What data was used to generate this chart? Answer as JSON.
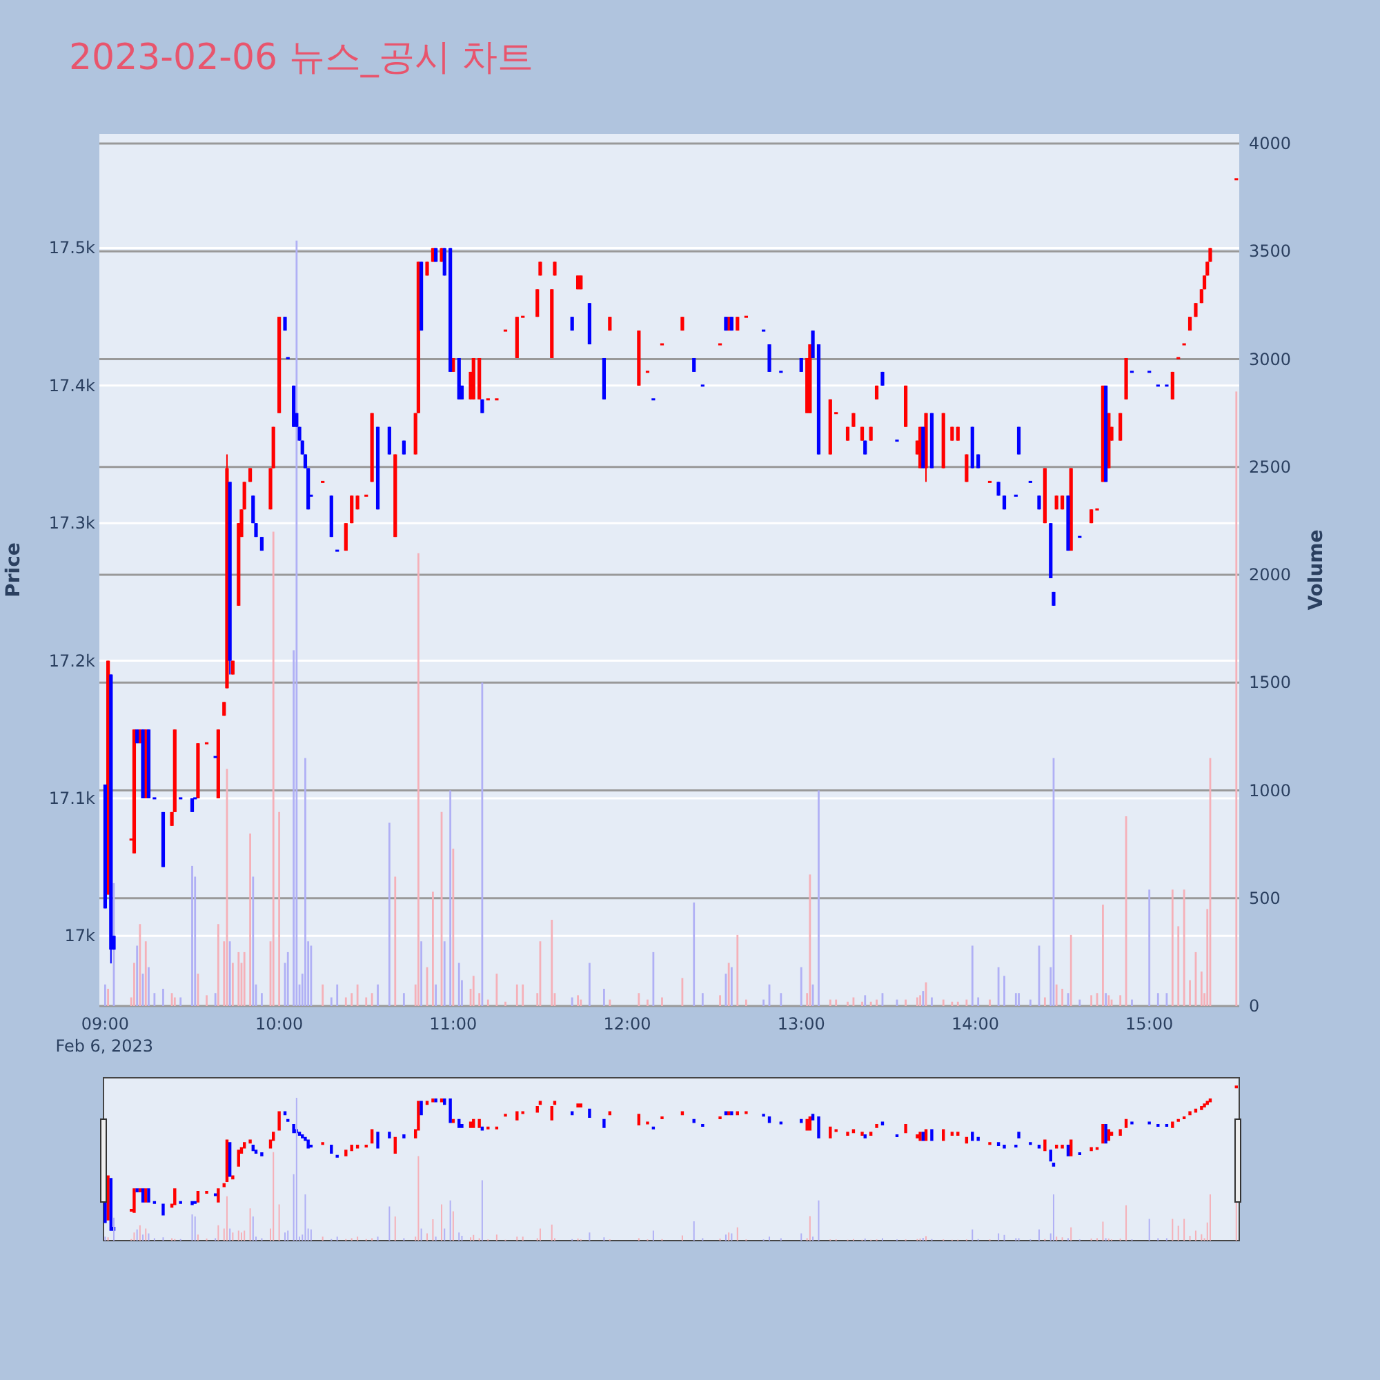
{
  "chart_data": {
    "type": "candlestick",
    "title": "2023-02-06 뉴스_공시 차트",
    "ylabel": "Price",
    "y2label": "Volume",
    "xlim": [
      "2023-02-06T08:58",
      "2023-02-06T15:31"
    ],
    "xticks": [
      {
        "value": "2023-02-06T09:00",
        "label": "09:00\nFeb 6, 2023"
      },
      {
        "value": "2023-02-06T10:00",
        "label": "10:00"
      },
      {
        "value": "2023-02-06T11:00",
        "label": "11:00"
      },
      {
        "value": "2023-02-06T12:00",
        "label": "12:00"
      },
      {
        "value": "2023-02-06T13:00",
        "label": "13:00"
      },
      {
        "value": "2023-02-06T14:00",
        "label": "14:00"
      },
      {
        "value": "2023-02-06T15:00",
        "label": "15:00"
      }
    ],
    "ylim": [
      16949,
      17583
    ],
    "yticks": [
      {
        "value": 17000,
        "label": "17k"
      },
      {
        "value": 17100,
        "label": "17.1k"
      },
      {
        "value": 17200,
        "label": "17.2k"
      },
      {
        "value": 17300,
        "label": "17.3k"
      },
      {
        "value": 17400,
        "label": "17.4k"
      },
      {
        "value": 17500,
        "label": "17.5k"
      }
    ],
    "y2lim": [
      0,
      4045
    ],
    "y2ticks": [
      0,
      500,
      1000,
      1500,
      2000,
      2500,
      3000,
      3500,
      4000
    ],
    "grid": true,
    "series": [
      {
        "type": "candlestick",
        "color": "#ff0000",
        "x": [
          "2023-02-06T09:01",
          "2023-02-06T09:09",
          "2023-02-06T09:10",
          "2023-02-06T09:12",
          "2023-02-06T09:14",
          "2023-02-06T09:23",
          "2023-02-06T09:24",
          "2023-02-06T09:32",
          "2023-02-06T09:35",
          "2023-02-06T09:39",
          "2023-02-06T09:41",
          "2023-02-06T09:42",
          "2023-02-06T09:44",
          "2023-02-06T09:46",
          "2023-02-06T09:47",
          "2023-02-06T09:48",
          "2023-02-06T09:50",
          "2023-02-06T09:57",
          "2023-02-06T09:58",
          "2023-02-06T10:00",
          "2023-02-06T10:15",
          "2023-02-06T10:23",
          "2023-02-06T10:25",
          "2023-02-06T10:27",
          "2023-02-06T10:30",
          "2023-02-06T10:32",
          "2023-02-06T10:40",
          "2023-02-06T10:47",
          "2023-02-06T10:48",
          "2023-02-06T10:51",
          "2023-02-06T10:53",
          "2023-02-06T10:56",
          "2023-02-06T11:00",
          "2023-02-06T11:06",
          "2023-02-06T11:07",
          "2023-02-06T11:09",
          "2023-02-06T11:12",
          "2023-02-06T11:15",
          "2023-02-06T11:18",
          "2023-02-06T11:22",
          "2023-02-06T11:24",
          "2023-02-06T11:29",
          "2023-02-06T11:30",
          "2023-02-06T11:34",
          "2023-02-06T11:35",
          "2023-02-06T11:43",
          "2023-02-06T11:44",
          "2023-02-06T11:54",
          "2023-02-06T12:04",
          "2023-02-06T12:07",
          "2023-02-06T12:12",
          "2023-02-06T12:19",
          "2023-02-06T12:32",
          "2023-02-06T12:35",
          "2023-02-06T12:38",
          "2023-02-06T12:41",
          "2023-02-06T13:02",
          "2023-02-06T13:03",
          "2023-02-06T13:10",
          "2023-02-06T13:12",
          "2023-02-06T13:16",
          "2023-02-06T13:18",
          "2023-02-06T13:21",
          "2023-02-06T13:24",
          "2023-02-06T13:26",
          "2023-02-06T13:36",
          "2023-02-06T13:40",
          "2023-02-06T13:41",
          "2023-02-06T13:43",
          "2023-02-06T13:49",
          "2023-02-06T13:52",
          "2023-02-06T13:54",
          "2023-02-06T13:57",
          "2023-02-06T14:05",
          "2023-02-06T14:24",
          "2023-02-06T14:28",
          "2023-02-06T14:30",
          "2023-02-06T14:33",
          "2023-02-06T14:40",
          "2023-02-06T14:42",
          "2023-02-06T14:44",
          "2023-02-06T14:46",
          "2023-02-06T14:47",
          "2023-02-06T14:50",
          "2023-02-06T14:52",
          "2023-02-06T15:08",
          "2023-02-06T15:10",
          "2023-02-06T15:12",
          "2023-02-06T15:14",
          "2023-02-06T15:16",
          "2023-02-06T15:18",
          "2023-02-06T15:19",
          "2023-02-06T15:20",
          "2023-02-06T15:21",
          "2023-02-06T15:30"
        ],
        "ohlc": [
          [
            17030,
            17200,
            17030,
            17200
          ],
          [
            17070,
            17070,
            17070,
            17070
          ],
          [
            17060,
            17150,
            17060,
            17150
          ],
          [
            17140,
            17150,
            17140,
            17150
          ],
          [
            17100,
            17150,
            17100,
            17150
          ],
          [
            17080,
            17090,
            17080,
            17090
          ],
          [
            17090,
            17150,
            17090,
            17150
          ],
          [
            17100,
            17140,
            17100,
            17140
          ],
          [
            17140,
            17140,
            17140,
            17140
          ],
          [
            17100,
            17150,
            17100,
            17150
          ],
          [
            17160,
            17170,
            17160,
            17170
          ],
          [
            17180,
            17350,
            17180,
            17340
          ],
          [
            17190,
            17200,
            17190,
            17200
          ],
          [
            17240,
            17300,
            17240,
            17300
          ],
          [
            17290,
            17310,
            17290,
            17310
          ],
          [
            17310,
            17330,
            17310,
            17330
          ],
          [
            17330,
            17340,
            17330,
            17340
          ],
          [
            17310,
            17340,
            17310,
            17340
          ],
          [
            17340,
            17370,
            17340,
            17370
          ],
          [
            17380,
            17450,
            17380,
            17450
          ],
          [
            17330,
            17330,
            17330,
            17330
          ],
          [
            17280,
            17300,
            17280,
            17300
          ],
          [
            17300,
            17320,
            17300,
            17320
          ],
          [
            17310,
            17320,
            17310,
            17320
          ],
          [
            17320,
            17320,
            17320,
            17320
          ],
          [
            17330,
            17380,
            17330,
            17380
          ],
          [
            17290,
            17350,
            17290,
            17350
          ],
          [
            17350,
            17380,
            17350,
            17380
          ],
          [
            17380,
            17490,
            17380,
            17490
          ],
          [
            17480,
            17490,
            17480,
            17490
          ],
          [
            17490,
            17500,
            17490,
            17500
          ],
          [
            17490,
            17500,
            17490,
            17500
          ],
          [
            17410,
            17420,
            17410,
            17420
          ],
          [
            17390,
            17410,
            17390,
            17410
          ],
          [
            17390,
            17420,
            17390,
            17420
          ],
          [
            17390,
            17420,
            17390,
            17420
          ],
          [
            17390,
            17390,
            17390,
            17390
          ],
          [
            17390,
            17390,
            17390,
            17390
          ],
          [
            17440,
            17440,
            17440,
            17440
          ],
          [
            17420,
            17450,
            17420,
            17450
          ],
          [
            17450,
            17450,
            17450,
            17450
          ],
          [
            17450,
            17470,
            17450,
            17470
          ],
          [
            17480,
            17490,
            17480,
            17490
          ],
          [
            17420,
            17470,
            17420,
            17470
          ],
          [
            17480,
            17490,
            17480,
            17490
          ],
          [
            17470,
            17480,
            17470,
            17480
          ],
          [
            17470,
            17480,
            17470,
            17480
          ],
          [
            17440,
            17450,
            17440,
            17450
          ],
          [
            17400,
            17440,
            17400,
            17440
          ],
          [
            17410,
            17410,
            17410,
            17410
          ],
          [
            17430,
            17430,
            17430,
            17430
          ],
          [
            17440,
            17450,
            17440,
            17450
          ],
          [
            17430,
            17430,
            17430,
            17430
          ],
          [
            17440,
            17450,
            17440,
            17450
          ],
          [
            17440,
            17450,
            17440,
            17450
          ],
          [
            17450,
            17450,
            17450,
            17450
          ],
          [
            17380,
            17420,
            17380,
            17420
          ],
          [
            17380,
            17430,
            17380,
            17430
          ],
          [
            17350,
            17390,
            17350,
            17390
          ],
          [
            17380,
            17380,
            17380,
            17380
          ],
          [
            17360,
            17370,
            17360,
            17370
          ],
          [
            17370,
            17380,
            17370,
            17380
          ],
          [
            17360,
            17370,
            17360,
            17370
          ],
          [
            17360,
            17370,
            17360,
            17370
          ],
          [
            17390,
            17400,
            17390,
            17400
          ],
          [
            17370,
            17400,
            17370,
            17400
          ],
          [
            17350,
            17360,
            17350,
            17360
          ],
          [
            17340,
            17370,
            17340,
            17370
          ],
          [
            17340,
            17380,
            17330,
            17380
          ],
          [
            17340,
            17380,
            17340,
            17380
          ],
          [
            17360,
            17370,
            17360,
            17370
          ],
          [
            17360,
            17370,
            17360,
            17370
          ],
          [
            17330,
            17350,
            17330,
            17350
          ],
          [
            17330,
            17330,
            17330,
            17330
          ],
          [
            17300,
            17340,
            17300,
            17340
          ],
          [
            17310,
            17320,
            17310,
            17320
          ],
          [
            17310,
            17320,
            17310,
            17320
          ],
          [
            17280,
            17340,
            17280,
            17340
          ],
          [
            17300,
            17310,
            17300,
            17310
          ],
          [
            17310,
            17310,
            17310,
            17310
          ],
          [
            17330,
            17400,
            17330,
            17400
          ],
          [
            17340,
            17380,
            17340,
            17380
          ],
          [
            17360,
            17370,
            17360,
            17370
          ],
          [
            17360,
            17380,
            17360,
            17380
          ],
          [
            17390,
            17420,
            17390,
            17420
          ],
          [
            17390,
            17410,
            17390,
            17410
          ],
          [
            17420,
            17420,
            17420,
            17420
          ],
          [
            17430,
            17430,
            17430,
            17430
          ],
          [
            17440,
            17450,
            17440,
            17450
          ],
          [
            17450,
            17460,
            17450,
            17460
          ],
          [
            17460,
            17470,
            17460,
            17470
          ],
          [
            17470,
            17480,
            17470,
            17480
          ],
          [
            17480,
            17490,
            17480,
            17490
          ],
          [
            17490,
            17500,
            17490,
            17500
          ],
          [
            17550,
            17550,
            17550,
            17550
          ]
        ]
      },
      {
        "type": "candlestick",
        "color": "#0000ff",
        "x": [
          "2023-02-06T09:00",
          "2023-02-06T09:02",
          "2023-02-06T09:03",
          "2023-02-06T09:11",
          "2023-02-06T09:13",
          "2023-02-06T09:15",
          "2023-02-06T09:17",
          "2023-02-06T09:20",
          "2023-02-06T09:26",
          "2023-02-06T09:30",
          "2023-02-06T09:31",
          "2023-02-06T09:38",
          "2023-02-06T09:43",
          "2023-02-06T09:51",
          "2023-02-06T09:52",
          "2023-02-06T09:54",
          "2023-02-06T10:02",
          "2023-02-06T10:03",
          "2023-02-06T10:05",
          "2023-02-06T10:06",
          "2023-02-06T10:07",
          "2023-02-06T10:08",
          "2023-02-06T10:09",
          "2023-02-06T10:10",
          "2023-02-06T10:11",
          "2023-02-06T10:18",
          "2023-02-06T10:20",
          "2023-02-06T10:34",
          "2023-02-06T10:38",
          "2023-02-06T10:43",
          "2023-02-06T10:49",
          "2023-02-06T10:54",
          "2023-02-06T10:57",
          "2023-02-06T10:59",
          "2023-02-06T11:02",
          "2023-02-06T11:03",
          "2023-02-06T11:10",
          "2023-02-06T11:41",
          "2023-02-06T11:47",
          "2023-02-06T11:52",
          "2023-02-06T12:09",
          "2023-02-06T12:23",
          "2023-02-06T12:26",
          "2023-02-06T12:34",
          "2023-02-06T12:36",
          "2023-02-06T12:47",
          "2023-02-06T12:49",
          "2023-02-06T12:53",
          "2023-02-06T13:00",
          "2023-02-06T13:04",
          "2023-02-06T13:06",
          "2023-02-06T13:22",
          "2023-02-06T13:28",
          "2023-02-06T13:33",
          "2023-02-06T13:42",
          "2023-02-06T13:45",
          "2023-02-06T13:59",
          "2023-02-06T14:01",
          "2023-02-06T14:08",
          "2023-02-06T14:10",
          "2023-02-06T14:14",
          "2023-02-06T14:15",
          "2023-02-06T14:19",
          "2023-02-06T14:22",
          "2023-02-06T14:26",
          "2023-02-06T14:27",
          "2023-02-06T14:32",
          "2023-02-06T14:36",
          "2023-02-06T14:45",
          "2023-02-06T14:54",
          "2023-02-06T15:00",
          "2023-02-06T15:03",
          "2023-02-06T15:06"
        ],
        "ohlc": [
          [
            17110,
            17110,
            17020,
            17020
          ],
          [
            17190,
            17190,
            16980,
            16990
          ],
          [
            17000,
            17000,
            16990,
            16990
          ],
          [
            17150,
            17150,
            17140,
            17140
          ],
          [
            17150,
            17150,
            17100,
            17100
          ],
          [
            17150,
            17150,
            17100,
            17100
          ],
          [
            17100,
            17100,
            17100,
            17100
          ],
          [
            17090,
            17090,
            17050,
            17050
          ],
          [
            17100,
            17100,
            17100,
            17100
          ],
          [
            17100,
            17100,
            17090,
            17090
          ],
          [
            17100,
            17100,
            17100,
            17100
          ],
          [
            17130,
            17130,
            17130,
            17130
          ],
          [
            17330,
            17330,
            17190,
            17200
          ],
          [
            17320,
            17320,
            17300,
            17300
          ],
          [
            17300,
            17300,
            17290,
            17290
          ],
          [
            17290,
            17290,
            17280,
            17280
          ],
          [
            17450,
            17450,
            17440,
            17440
          ],
          [
            17420,
            17420,
            17420,
            17420
          ],
          [
            17400,
            17400,
            17370,
            17370
          ],
          [
            17380,
            17380,
            17370,
            17370
          ],
          [
            17370,
            17370,
            17360,
            17360
          ],
          [
            17360,
            17360,
            17350,
            17350
          ],
          [
            17350,
            17350,
            17340,
            17340
          ],
          [
            17340,
            17340,
            17310,
            17310
          ],
          [
            17320,
            17320,
            17320,
            17320
          ],
          [
            17320,
            17320,
            17290,
            17290
          ],
          [
            17280,
            17280,
            17280,
            17280
          ],
          [
            17370,
            17370,
            17310,
            17310
          ],
          [
            17370,
            17370,
            17350,
            17350
          ],
          [
            17360,
            17360,
            17350,
            17350
          ],
          [
            17490,
            17490,
            17440,
            17440
          ],
          [
            17500,
            17500,
            17490,
            17490
          ],
          [
            17500,
            17500,
            17480,
            17480
          ],
          [
            17500,
            17500,
            17410,
            17410
          ],
          [
            17420,
            17420,
            17390,
            17390
          ],
          [
            17400,
            17400,
            17390,
            17390
          ],
          [
            17390,
            17390,
            17380,
            17380
          ],
          [
            17450,
            17450,
            17440,
            17440
          ],
          [
            17460,
            17460,
            17430,
            17430
          ],
          [
            17420,
            17420,
            17390,
            17390
          ],
          [
            17390,
            17390,
            17390,
            17390
          ],
          [
            17420,
            17420,
            17410,
            17410
          ],
          [
            17400,
            17400,
            17400,
            17400
          ],
          [
            17450,
            17450,
            17440,
            17440
          ],
          [
            17450,
            17450,
            17440,
            17440
          ],
          [
            17440,
            17440,
            17440,
            17440
          ],
          [
            17430,
            17430,
            17410,
            17410
          ],
          [
            17410,
            17410,
            17410,
            17410
          ],
          [
            17420,
            17420,
            17410,
            17410
          ],
          [
            17440,
            17440,
            17420,
            17420
          ],
          [
            17430,
            17430,
            17350,
            17350
          ],
          [
            17360,
            17360,
            17350,
            17350
          ],
          [
            17410,
            17410,
            17400,
            17400
          ],
          [
            17360,
            17360,
            17360,
            17360
          ],
          [
            17370,
            17370,
            17340,
            17340
          ],
          [
            17380,
            17380,
            17340,
            17340
          ],
          [
            17370,
            17370,
            17340,
            17340
          ],
          [
            17350,
            17350,
            17340,
            17340
          ],
          [
            17330,
            17330,
            17320,
            17320
          ],
          [
            17320,
            17320,
            17310,
            17310
          ],
          [
            17320,
            17320,
            17320,
            17320
          ],
          [
            17370,
            17370,
            17350,
            17350
          ],
          [
            17330,
            17330,
            17330,
            17330
          ],
          [
            17320,
            17320,
            17310,
            17310
          ],
          [
            17300,
            17300,
            17260,
            17260
          ],
          [
            17250,
            17250,
            17240,
            17240
          ],
          [
            17320,
            17320,
            17280,
            17280
          ],
          [
            17290,
            17290,
            17290,
            17290
          ],
          [
            17400,
            17400,
            17330,
            17330
          ],
          [
            17410,
            17410,
            17410,
            17410
          ],
          [
            17410,
            17410,
            17410,
            17410
          ],
          [
            17400,
            17400,
            17400,
            17400
          ],
          [
            17400,
            17400,
            17400,
            17400
          ]
        ]
      },
      {
        "type": "bar",
        "axis": "y2",
        "color": "#f5b0b8",
        "x": [
          "2023-02-06T09:01",
          "2023-02-06T09:09",
          "2023-02-06T09:10",
          "2023-02-06T09:12",
          "2023-02-06T09:14",
          "2023-02-06T09:23",
          "2023-02-06T09:24",
          "2023-02-06T09:32",
          "2023-02-06T09:35",
          "2023-02-06T09:39",
          "2023-02-06T09:41",
          "2023-02-06T09:42",
          "2023-02-06T09:44",
          "2023-02-06T09:46",
          "2023-02-06T09:47",
          "2023-02-06T09:48",
          "2023-02-06T09:50",
          "2023-02-06T09:57",
          "2023-02-06T09:58",
          "2023-02-06T10:00",
          "2023-02-06T10:15",
          "2023-02-06T10:23",
          "2023-02-06T10:25",
          "2023-02-06T10:27",
          "2023-02-06T10:30",
          "2023-02-06T10:32",
          "2023-02-06T10:40",
          "2023-02-06T10:47",
          "2023-02-06T10:48",
          "2023-02-06T10:51",
          "2023-02-06T10:53",
          "2023-02-06T10:56",
          "2023-02-06T11:00",
          "2023-02-06T11:06",
          "2023-02-06T11:07",
          "2023-02-06T11:09",
          "2023-02-06T11:12",
          "2023-02-06T11:15",
          "2023-02-06T11:18",
          "2023-02-06T11:22",
          "2023-02-06T11:24",
          "2023-02-06T11:29",
          "2023-02-06T11:30",
          "2023-02-06T11:34",
          "2023-02-06T11:35",
          "2023-02-06T11:43",
          "2023-02-06T11:44",
          "2023-02-06T11:54",
          "2023-02-06T12:04",
          "2023-02-06T12:07",
          "2023-02-06T12:12",
          "2023-02-06T12:19",
          "2023-02-06T12:32",
          "2023-02-06T12:35",
          "2023-02-06T12:38",
          "2023-02-06T12:41",
          "2023-02-06T13:02",
          "2023-02-06T13:03",
          "2023-02-06T13:10",
          "2023-02-06T13:12",
          "2023-02-06T13:16",
          "2023-02-06T13:18",
          "2023-02-06T13:21",
          "2023-02-06T13:24",
          "2023-02-06T13:26",
          "2023-02-06T13:36",
          "2023-02-06T13:40",
          "2023-02-06T13:41",
          "2023-02-06T13:43",
          "2023-02-06T13:49",
          "2023-02-06T13:52",
          "2023-02-06T13:54",
          "2023-02-06T13:57",
          "2023-02-06T14:05",
          "2023-02-06T14:24",
          "2023-02-06T14:28",
          "2023-02-06T14:30",
          "2023-02-06T14:33",
          "2023-02-06T14:40",
          "2023-02-06T14:42",
          "2023-02-06T14:44",
          "2023-02-06T14:46",
          "2023-02-06T14:47",
          "2023-02-06T14:50",
          "2023-02-06T14:52",
          "2023-02-06T15:08",
          "2023-02-06T15:10",
          "2023-02-06T15:12",
          "2023-02-06T15:14",
          "2023-02-06T15:16",
          "2023-02-06T15:18",
          "2023-02-06T15:19",
          "2023-02-06T15:20",
          "2023-02-06T15:21",
          "2023-02-06T15:30"
        ],
        "values": [
          80,
          40,
          200,
          380,
          300,
          60,
          40,
          150,
          50,
          380,
          300,
          1100,
          200,
          250,
          200,
          250,
          800,
          300,
          2200,
          900,
          100,
          40,
          60,
          100,
          40,
          60,
          600,
          100,
          2100,
          180,
          530,
          900,
          730,
          80,
          140,
          60,
          30,
          150,
          20,
          100,
          100,
          60,
          300,
          400,
          60,
          50,
          30,
          30,
          60,
          30,
          40,
          130,
          50,
          200,
          330,
          30,
          60,
          610,
          30,
          30,
          20,
          40,
          20,
          20,
          30,
          30,
          40,
          50,
          110,
          30,
          20,
          20,
          30,
          30,
          40,
          100,
          80,
          330,
          50,
          60,
          470,
          50,
          30,
          50,
          880,
          540,
          370,
          540,
          120,
          250,
          160,
          60,
          450,
          1150,
          2850
        ]
      },
      {
        "type": "bar",
        "axis": "y2",
        "color": "#b0b0f5",
        "x": [
          "2023-02-06T09:00",
          "2023-02-06T09:03",
          "2023-02-06T09:11",
          "2023-02-06T09:13",
          "2023-02-06T09:15",
          "2023-02-06T09:17",
          "2023-02-06T09:20",
          "2023-02-06T09:26",
          "2023-02-06T09:30",
          "2023-02-06T09:31",
          "2023-02-06T09:38",
          "2023-02-06T09:43",
          "2023-02-06T09:51",
          "2023-02-06T09:52",
          "2023-02-06T09:54",
          "2023-02-06T10:02",
          "2023-02-06T10:03",
          "2023-02-06T10:05",
          "2023-02-06T10:06",
          "2023-02-06T10:07",
          "2023-02-06T10:08",
          "2023-02-06T10:09",
          "2023-02-06T10:10",
          "2023-02-06T10:11",
          "2023-02-06T10:18",
          "2023-02-06T10:20",
          "2023-02-06T10:34",
          "2023-02-06T10:38",
          "2023-02-06T10:43",
          "2023-02-06T10:49",
          "2023-02-06T10:54",
          "2023-02-06T10:57",
          "2023-02-06T10:59",
          "2023-02-06T11:02",
          "2023-02-06T11:03",
          "2023-02-06T11:10",
          "2023-02-06T11:41",
          "2023-02-06T11:47",
          "2023-02-06T11:52",
          "2023-02-06T12:09",
          "2023-02-06T12:23",
          "2023-02-06T12:26",
          "2023-02-06T12:34",
          "2023-02-06T12:36",
          "2023-02-06T12:47",
          "2023-02-06T12:49",
          "2023-02-06T12:53",
          "2023-02-06T13:00",
          "2023-02-06T13:04",
          "2023-02-06T13:06",
          "2023-02-06T13:22",
          "2023-02-06T13:28",
          "2023-02-06T13:33",
          "2023-02-06T13:42",
          "2023-02-06T13:45",
          "2023-02-06T13:59",
          "2023-02-06T14:01",
          "2023-02-06T14:08",
          "2023-02-06T14:10",
          "2023-02-06T14:14",
          "2023-02-06T14:15",
          "2023-02-06T14:19",
          "2023-02-06T14:22",
          "2023-02-06T14:26",
          "2023-02-06T14:27",
          "2023-02-06T14:32",
          "2023-02-06T14:36",
          "2023-02-06T14:45",
          "2023-02-06T14:54",
          "2023-02-06T15:00",
          "2023-02-06T15:03",
          "2023-02-06T15:06"
        ],
        "values": [
          100,
          570,
          280,
          150,
          180,
          60,
          80,
          40,
          650,
          600,
          60,
          300,
          600,
          100,
          60,
          200,
          250,
          1650,
          3550,
          100,
          150,
          1150,
          300,
          280,
          40,
          100,
          100,
          850,
          60,
          300,
          100,
          300,
          1000,
          200,
          120,
          1500,
          40,
          200,
          80,
          250,
          480,
          60,
          150,
          180,
          30,
          100,
          60,
          180,
          100,
          1000,
          50,
          60,
          30,
          70,
          40,
          280,
          40,
          180,
          140,
          60,
          60,
          30,
          280,
          180,
          1150,
          60,
          30,
          60,
          30,
          540,
          60,
          60
        ]
      }
    ]
  }
}
